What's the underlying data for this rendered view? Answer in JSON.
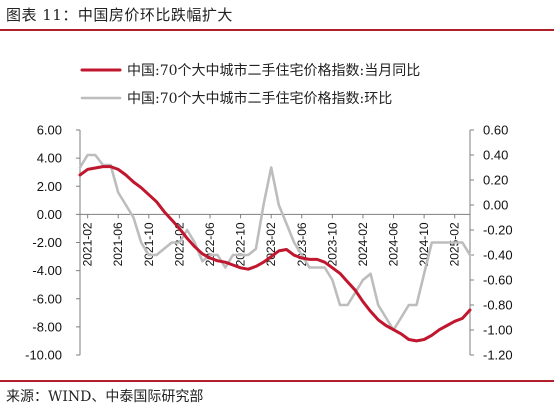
{
  "header": {
    "title": "图表 11：中国房价环比跌幅扩大"
  },
  "footer": {
    "source": "来源：WIND、中泰国际研究部"
  },
  "colors": {
    "accent": "#b0202c",
    "yoy": "#c0172f",
    "mom": "#bdbdbd"
  },
  "chart_data": {
    "type": "line",
    "title": "",
    "x": [
      "2021-01",
      "2021-02",
      "2021-03",
      "2021-04",
      "2021-05",
      "2021-06",
      "2021-07",
      "2021-08",
      "2021-09",
      "2021-10",
      "2021-11",
      "2021-12",
      "2022-01",
      "2022-02",
      "2022-03",
      "2022-04",
      "2022-05",
      "2022-06",
      "2022-07",
      "2022-08",
      "2022-09",
      "2022-10",
      "2022-11",
      "2022-12",
      "2023-01",
      "2023-02",
      "2023-03",
      "2023-04",
      "2023-05",
      "2023-06",
      "2023-07",
      "2023-08",
      "2023-09",
      "2023-10",
      "2023-11",
      "2023-12",
      "2024-01",
      "2024-02",
      "2024-03",
      "2024-04",
      "2024-05",
      "2024-06",
      "2024-07",
      "2024-08",
      "2024-09",
      "2024-10",
      "2024-11",
      "2024-12",
      "2025-01",
      "2025-02",
      "2025-03",
      "2025-04"
    ],
    "x_tick_labels": [
      "2021-02",
      "2021-06",
      "2021-10",
      "2022-02",
      "2022-06",
      "2022-10",
      "2023-02",
      "2023-06",
      "2023-10",
      "2024-02",
      "2024-06",
      "2024-10",
      "2025-02"
    ],
    "series": [
      {
        "name": "中国:70个大中城市二手住宅价格指数:当月同比",
        "axis": "left",
        "color": "#c0172f",
        "values": [
          2.8,
          3.2,
          3.3,
          3.4,
          3.4,
          3.2,
          2.8,
          2.3,
          1.9,
          1.4,
          0.9,
          0.2,
          -0.4,
          -1.0,
          -1.7,
          -2.3,
          -2.8,
          -3.1,
          -3.3,
          -3.4,
          -3.6,
          -3.8,
          -3.9,
          -3.7,
          -3.4,
          -3.0,
          -2.6,
          -2.5,
          -2.9,
          -3.1,
          -3.2,
          -3.2,
          -3.4,
          -3.8,
          -4.2,
          -4.8,
          -5.4,
          -6.2,
          -6.9,
          -7.5,
          -7.9,
          -8.2,
          -8.5,
          -8.9,
          -9.0,
          -8.9,
          -8.6,
          -8.2,
          -7.9,
          -7.6,
          -7.4,
          -6.8
        ]
      },
      {
        "name": "中国:70个大中城市二手住宅价格指数:环比",
        "axis": "right",
        "color": "#bdbdbd",
        "values": [
          0.3,
          0.4,
          0.4,
          0.32,
          0.32,
          0.1,
          0.0,
          -0.1,
          -0.3,
          -0.4,
          -0.4,
          -0.35,
          -0.3,
          -0.3,
          -0.2,
          -0.3,
          -0.45,
          -0.4,
          -0.4,
          -0.5,
          -0.4,
          -0.4,
          -0.4,
          -0.35,
          0.0,
          0.3,
          0.0,
          -0.15,
          -0.3,
          -0.4,
          -0.5,
          -0.5,
          -0.5,
          -0.6,
          -0.8,
          -0.8,
          -0.7,
          -0.6,
          -0.55,
          -0.8,
          -0.9,
          -1.0,
          -0.9,
          -0.8,
          -0.8,
          -0.55,
          -0.3,
          -0.3,
          -0.3,
          -0.3,
          -0.3,
          -0.4
        ]
      }
    ],
    "y_left": {
      "min": -10,
      "max": 6,
      "ticks": [
        "6.00",
        "4.00",
        "2.00",
        "0.00",
        "-2.00",
        "-4.00",
        "-6.00",
        "-8.00",
        "-10.00"
      ]
    },
    "y_right": {
      "min": -1.2,
      "max": 0.6,
      "ticks": [
        "0.60",
        "0.40",
        "0.20",
        "0.00",
        "-0.20",
        "-0.40",
        "-0.60",
        "-0.80",
        "-1.00",
        "-1.20"
      ]
    },
    "legend_position": "top",
    "grid": false
  }
}
